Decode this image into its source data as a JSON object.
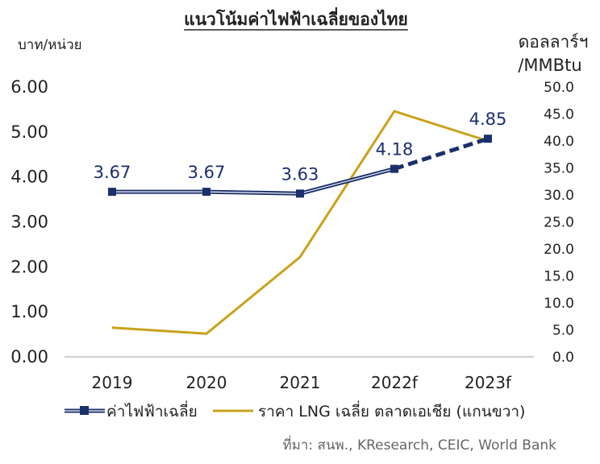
{
  "chart_data": {
    "type": "line",
    "title": "แนวโน้มค่าไฟฟ้าเฉลี่ยของไทย",
    "categories": [
      "2019",
      "2020",
      "2021",
      "2022f",
      "2023f"
    ],
    "y_left": {
      "label": "บาท/หน่วย",
      "range": [
        0,
        6
      ],
      "ticks": [
        "0.00",
        "1.00",
        "2.00",
        "3.00",
        "4.00",
        "5.00",
        "6.00"
      ]
    },
    "y_right": {
      "label_line1": "ดอลลาร์ฯ",
      "label_line2": "/MMBtu",
      "range": [
        0,
        50
      ],
      "ticks": [
        "0.0",
        "5.0",
        "10.0",
        "15.0",
        "20.0",
        "25.0",
        "30.0",
        "35.0",
        "40.0",
        "45.0",
        "50.0"
      ]
    },
    "series": [
      {
        "name": "ค่าไฟฟ้าเฉลี่ย",
        "axis": "left",
        "values": [
          3.67,
          3.67,
          3.63,
          4.18,
          4.85
        ],
        "labels": [
          "3.67",
          "3.67",
          "3.63",
          "4.18",
          "4.85"
        ],
        "color": "#1a2f6b",
        "dashed_from_index": 3
      },
      {
        "name": "ราคา LNG เฉลี่ย ตลาดเอเชีย (แกนขวา)",
        "axis": "right",
        "values": [
          5.4,
          4.3,
          18.5,
          45.5,
          40.0
        ],
        "color": "#c9a21b"
      }
    ],
    "grid": false,
    "legend_position": "bottom"
  },
  "source": "ที่มา: สนพ., KResearch, CEIC, World Bank"
}
